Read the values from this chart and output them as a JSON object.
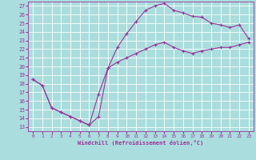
{
  "xlabel": "Windchill (Refroidissement éolien,°C)",
  "line_color": "#993399",
  "bg_color": "#aadddd",
  "grid_color": "#ffffff",
  "text_color": "#993399",
  "x_ticks": [
    0,
    1,
    2,
    3,
    4,
    5,
    6,
    7,
    8,
    9,
    10,
    11,
    12,
    13,
    14,
    15,
    16,
    17,
    18,
    19,
    20,
    21,
    22,
    23
  ],
  "y_ticks": [
    13,
    14,
    15,
    16,
    17,
    18,
    19,
    20,
    21,
    22,
    23,
    24,
    25,
    26,
    27
  ],
  "xlim": [
    -0.5,
    23.5
  ],
  "ylim": [
    12.5,
    27.5
  ],
  "line1_x": [
    0,
    1,
    2,
    3,
    4,
    5,
    6,
    7,
    8,
    9,
    10,
    11,
    12,
    13,
    14,
    15,
    16,
    17,
    18,
    19,
    20,
    21,
    22,
    23
  ],
  "line1_y": [
    18.5,
    17.8,
    15.2,
    14.7,
    14.2,
    13.7,
    13.2,
    14.2,
    19.8,
    22.2,
    23.8,
    25.2,
    26.5,
    27.0,
    27.3,
    26.5,
    26.2,
    25.8,
    25.7,
    25.0,
    24.8,
    24.5,
    24.8,
    23.2
  ],
  "line2_x": [
    0,
    1,
    2,
    3,
    4,
    5,
    6,
    7,
    8,
    9,
    10,
    11,
    12,
    13,
    14,
    15,
    16,
    17,
    18,
    19,
    20,
    21,
    22,
    23
  ],
  "line2_y": [
    18.5,
    17.8,
    15.2,
    14.7,
    14.2,
    13.7,
    13.2,
    16.8,
    19.8,
    20.5,
    21.0,
    21.5,
    22.0,
    22.5,
    22.8,
    22.2,
    21.8,
    21.5,
    21.8,
    22.0,
    22.2,
    22.2,
    22.5,
    22.8
  ]
}
